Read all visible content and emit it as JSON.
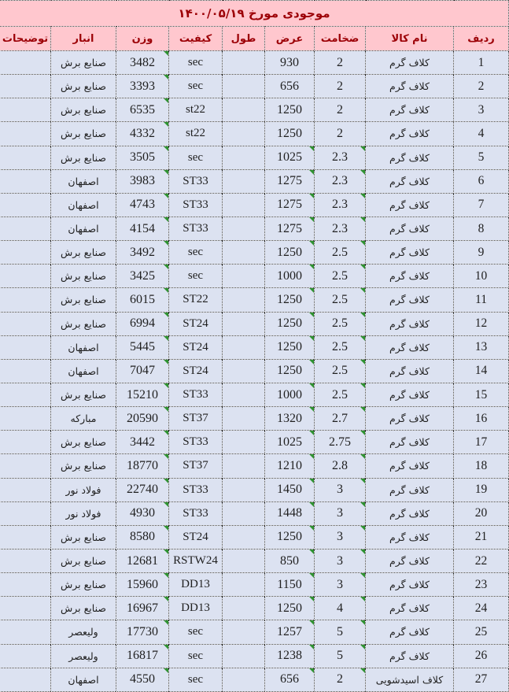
{
  "title": "موجودی مورخ ۱۴۰۰/۰۵/۱۹",
  "colors": {
    "header_bg": "#ffc7ce",
    "header_text": "#9c0006",
    "cell_bg": "#dce2f1",
    "border": "#3f3f3f",
    "marker_green": "#2f9232"
  },
  "icons": {
    "corner-flag-icon": "small green triangle at top-right corner of cell"
  },
  "columns": [
    {
      "key": "radif",
      "label": "ردیف"
    },
    {
      "key": "item",
      "label": "نام کالا"
    },
    {
      "key": "thickness",
      "label": "ضخامت"
    },
    {
      "key": "width",
      "label": "عرض"
    },
    {
      "key": "length",
      "label": "طول"
    },
    {
      "key": "quality",
      "label": "کیفیت"
    },
    {
      "key": "weight",
      "label": "وزن"
    },
    {
      "key": "warehouse",
      "label": "انبار"
    },
    {
      "key": "notes",
      "label": "توضیحات"
    }
  ],
  "rows": [
    {
      "radif": "1",
      "item": "کلاف گرم",
      "thickness": "2",
      "width": "930",
      "length": "",
      "quality": "sec",
      "weight": "3482",
      "warehouse": "صنایع برش",
      "notes": "",
      "marked": [
        "weight"
      ]
    },
    {
      "radif": "2",
      "item": "کلاف گرم",
      "thickness": "2",
      "width": "656",
      "length": "",
      "quality": "sec",
      "weight": "3393",
      "warehouse": "صنایع برش",
      "notes": "",
      "marked": [
        "weight"
      ]
    },
    {
      "radif": "3",
      "item": "کلاف گرم",
      "thickness": "2",
      "width": "1250",
      "length": "",
      "quality": "st22",
      "weight": "6535",
      "warehouse": "صنایع برش",
      "notes": "",
      "marked": [
        "weight"
      ]
    },
    {
      "radif": "4",
      "item": "کلاف گرم",
      "thickness": "2",
      "width": "1250",
      "length": "",
      "quality": "st22",
      "weight": "4332",
      "warehouse": "صنایع برش",
      "notes": "",
      "marked": [
        "weight"
      ]
    },
    {
      "radif": "5",
      "item": "کلاف گرم",
      "thickness": "2.3",
      "width": "1025",
      "length": "",
      "quality": "sec",
      "weight": "3505",
      "warehouse": "صنایع برش",
      "notes": "",
      "marked": [
        "thickness",
        "width",
        "weight"
      ]
    },
    {
      "radif": "6",
      "item": "کلاف گرم",
      "thickness": "2.3",
      "width": "1275",
      "length": "",
      "quality": "ST33",
      "weight": "3983",
      "warehouse": "اصفهان",
      "notes": "",
      "marked": [
        "thickness",
        "width",
        "weight"
      ]
    },
    {
      "radif": "7",
      "item": "کلاف گرم",
      "thickness": "2.3",
      "width": "1275",
      "length": "",
      "quality": "ST33",
      "weight": "4743",
      "warehouse": "اصفهان",
      "notes": "",
      "marked": [
        "thickness",
        "width",
        "weight"
      ]
    },
    {
      "radif": "8",
      "item": "کلاف گرم",
      "thickness": "2.3",
      "width": "1275",
      "length": "",
      "quality": "ST33",
      "weight": "4154",
      "warehouse": "اصفهان",
      "notes": "",
      "marked": [
        "thickness",
        "width",
        "weight"
      ]
    },
    {
      "radif": "9",
      "item": "کلاف گرم",
      "thickness": "2.5",
      "width": "1250",
      "length": "",
      "quality": "sec",
      "weight": "3492",
      "warehouse": "صنایع برش",
      "notes": "",
      "marked": [
        "thickness",
        "width",
        "weight"
      ]
    },
    {
      "radif": "10",
      "item": "کلاف گرم",
      "thickness": "2.5",
      "width": "1000",
      "length": "",
      "quality": "sec",
      "weight": "3425",
      "warehouse": "صنایع برش",
      "notes": "",
      "marked": [
        "thickness",
        "width",
        "weight"
      ]
    },
    {
      "radif": "11",
      "item": "کلاف گرم",
      "thickness": "2.5",
      "width": "1250",
      "length": "",
      "quality": "ST22",
      "weight": "6015",
      "warehouse": "صنایع برش",
      "notes": "",
      "marked": [
        "thickness",
        "width",
        "weight"
      ]
    },
    {
      "radif": "12",
      "item": "کلاف گرم",
      "thickness": "2.5",
      "width": "1250",
      "length": "",
      "quality": "ST24",
      "weight": "6994",
      "warehouse": "صنایع برش",
      "notes": "",
      "marked": [
        "thickness",
        "width",
        "weight"
      ]
    },
    {
      "radif": "13",
      "item": "کلاف گرم",
      "thickness": "2.5",
      "width": "1250",
      "length": "",
      "quality": "ST24",
      "weight": "5445",
      "warehouse": "اصفهان",
      "notes": "",
      "marked": [
        "thickness",
        "width",
        "weight"
      ]
    },
    {
      "radif": "14",
      "item": "کلاف گرم",
      "thickness": "2.5",
      "width": "1250",
      "length": "",
      "quality": "ST24",
      "weight": "7047",
      "warehouse": "اصفهان",
      "notes": "",
      "marked": [
        "thickness",
        "width",
        "weight"
      ]
    },
    {
      "radif": "15",
      "item": "کلاف گرم",
      "thickness": "2.5",
      "width": "1000",
      "length": "",
      "quality": "ST33",
      "weight": "15210",
      "warehouse": "صنایع برش",
      "notes": "",
      "marked": [
        "thickness",
        "width",
        "weight"
      ]
    },
    {
      "radif": "16",
      "item": "کلاف گرم",
      "thickness": "2.7",
      "width": "1320",
      "length": "",
      "quality": "ST37",
      "weight": "20590",
      "warehouse": "مبارکه",
      "notes": "",
      "marked": [
        "thickness",
        "width",
        "weight"
      ]
    },
    {
      "radif": "17",
      "item": "کلاف گرم",
      "thickness": "2.75",
      "width": "1025",
      "length": "",
      "quality": "ST33",
      "weight": "3442",
      "warehouse": "صنایع برش",
      "notes": "",
      "marked": [
        "thickness",
        "width",
        "weight"
      ]
    },
    {
      "radif": "18",
      "item": "کلاف گرم",
      "thickness": "2.8",
      "width": "1210",
      "length": "",
      "quality": "ST37",
      "weight": "18770",
      "warehouse": "صنایع برش",
      "notes": "",
      "marked": [
        "thickness",
        "width",
        "weight"
      ]
    },
    {
      "radif": "19",
      "item": "کلاف گرم",
      "thickness": "3",
      "width": "1450",
      "length": "",
      "quality": "ST33",
      "weight": "22740",
      "warehouse": "فولاد نور",
      "notes": "",
      "marked": [
        "thickness",
        "width",
        "weight"
      ]
    },
    {
      "radif": "20",
      "item": "کلاف گرم",
      "thickness": "3",
      "width": "1448",
      "length": "",
      "quality": "ST33",
      "weight": "4930",
      "warehouse": "فولاد نور",
      "notes": "",
      "marked": [
        "thickness",
        "width",
        "weight"
      ]
    },
    {
      "radif": "21",
      "item": "کلاف گرم",
      "thickness": "3",
      "width": "1250",
      "length": "",
      "quality": "ST24",
      "weight": "8580",
      "warehouse": "صنایع برش",
      "notes": "",
      "marked": [
        "thickness",
        "width",
        "weight"
      ]
    },
    {
      "radif": "22",
      "item": "کلاف گرم",
      "thickness": "3",
      "width": "850",
      "length": "",
      "quality": "RSTW24",
      "weight": "12681",
      "warehouse": "صنایع برش",
      "notes": "",
      "marked": [
        "thickness",
        "width",
        "weight"
      ]
    },
    {
      "radif": "23",
      "item": "کلاف گرم",
      "thickness": "3",
      "width": "1150",
      "length": "",
      "quality": "DD13",
      "weight": "15960",
      "warehouse": "صنایع برش",
      "notes": "",
      "marked": [
        "thickness",
        "width",
        "weight"
      ]
    },
    {
      "radif": "24",
      "item": "کلاف گرم",
      "thickness": "4",
      "width": "1250",
      "length": "",
      "quality": "DD13",
      "weight": "16967",
      "warehouse": "صنایع برش",
      "notes": "",
      "marked": [
        "thickness",
        "width",
        "weight"
      ]
    },
    {
      "radif": "25",
      "item": "کلاف گرم",
      "thickness": "5",
      "width": "1257",
      "length": "",
      "quality": "sec",
      "weight": "17730",
      "warehouse": "ولیعصر",
      "notes": "",
      "marked": [
        "thickness",
        "width",
        "weight"
      ]
    },
    {
      "radif": "26",
      "item": "کلاف گرم",
      "thickness": "5",
      "width": "1238",
      "length": "",
      "quality": "sec",
      "weight": "16817",
      "warehouse": "ولیعصر",
      "notes": "",
      "marked": [
        "thickness",
        "width",
        "weight"
      ]
    },
    {
      "radif": "27",
      "item": "کلاف اسیدشویی",
      "thickness": "2",
      "width": "656",
      "length": "",
      "quality": "sec",
      "weight": "4550",
      "warehouse": "اصفهان",
      "notes": "",
      "marked": [
        "thickness",
        "width",
        "weight"
      ]
    }
  ]
}
